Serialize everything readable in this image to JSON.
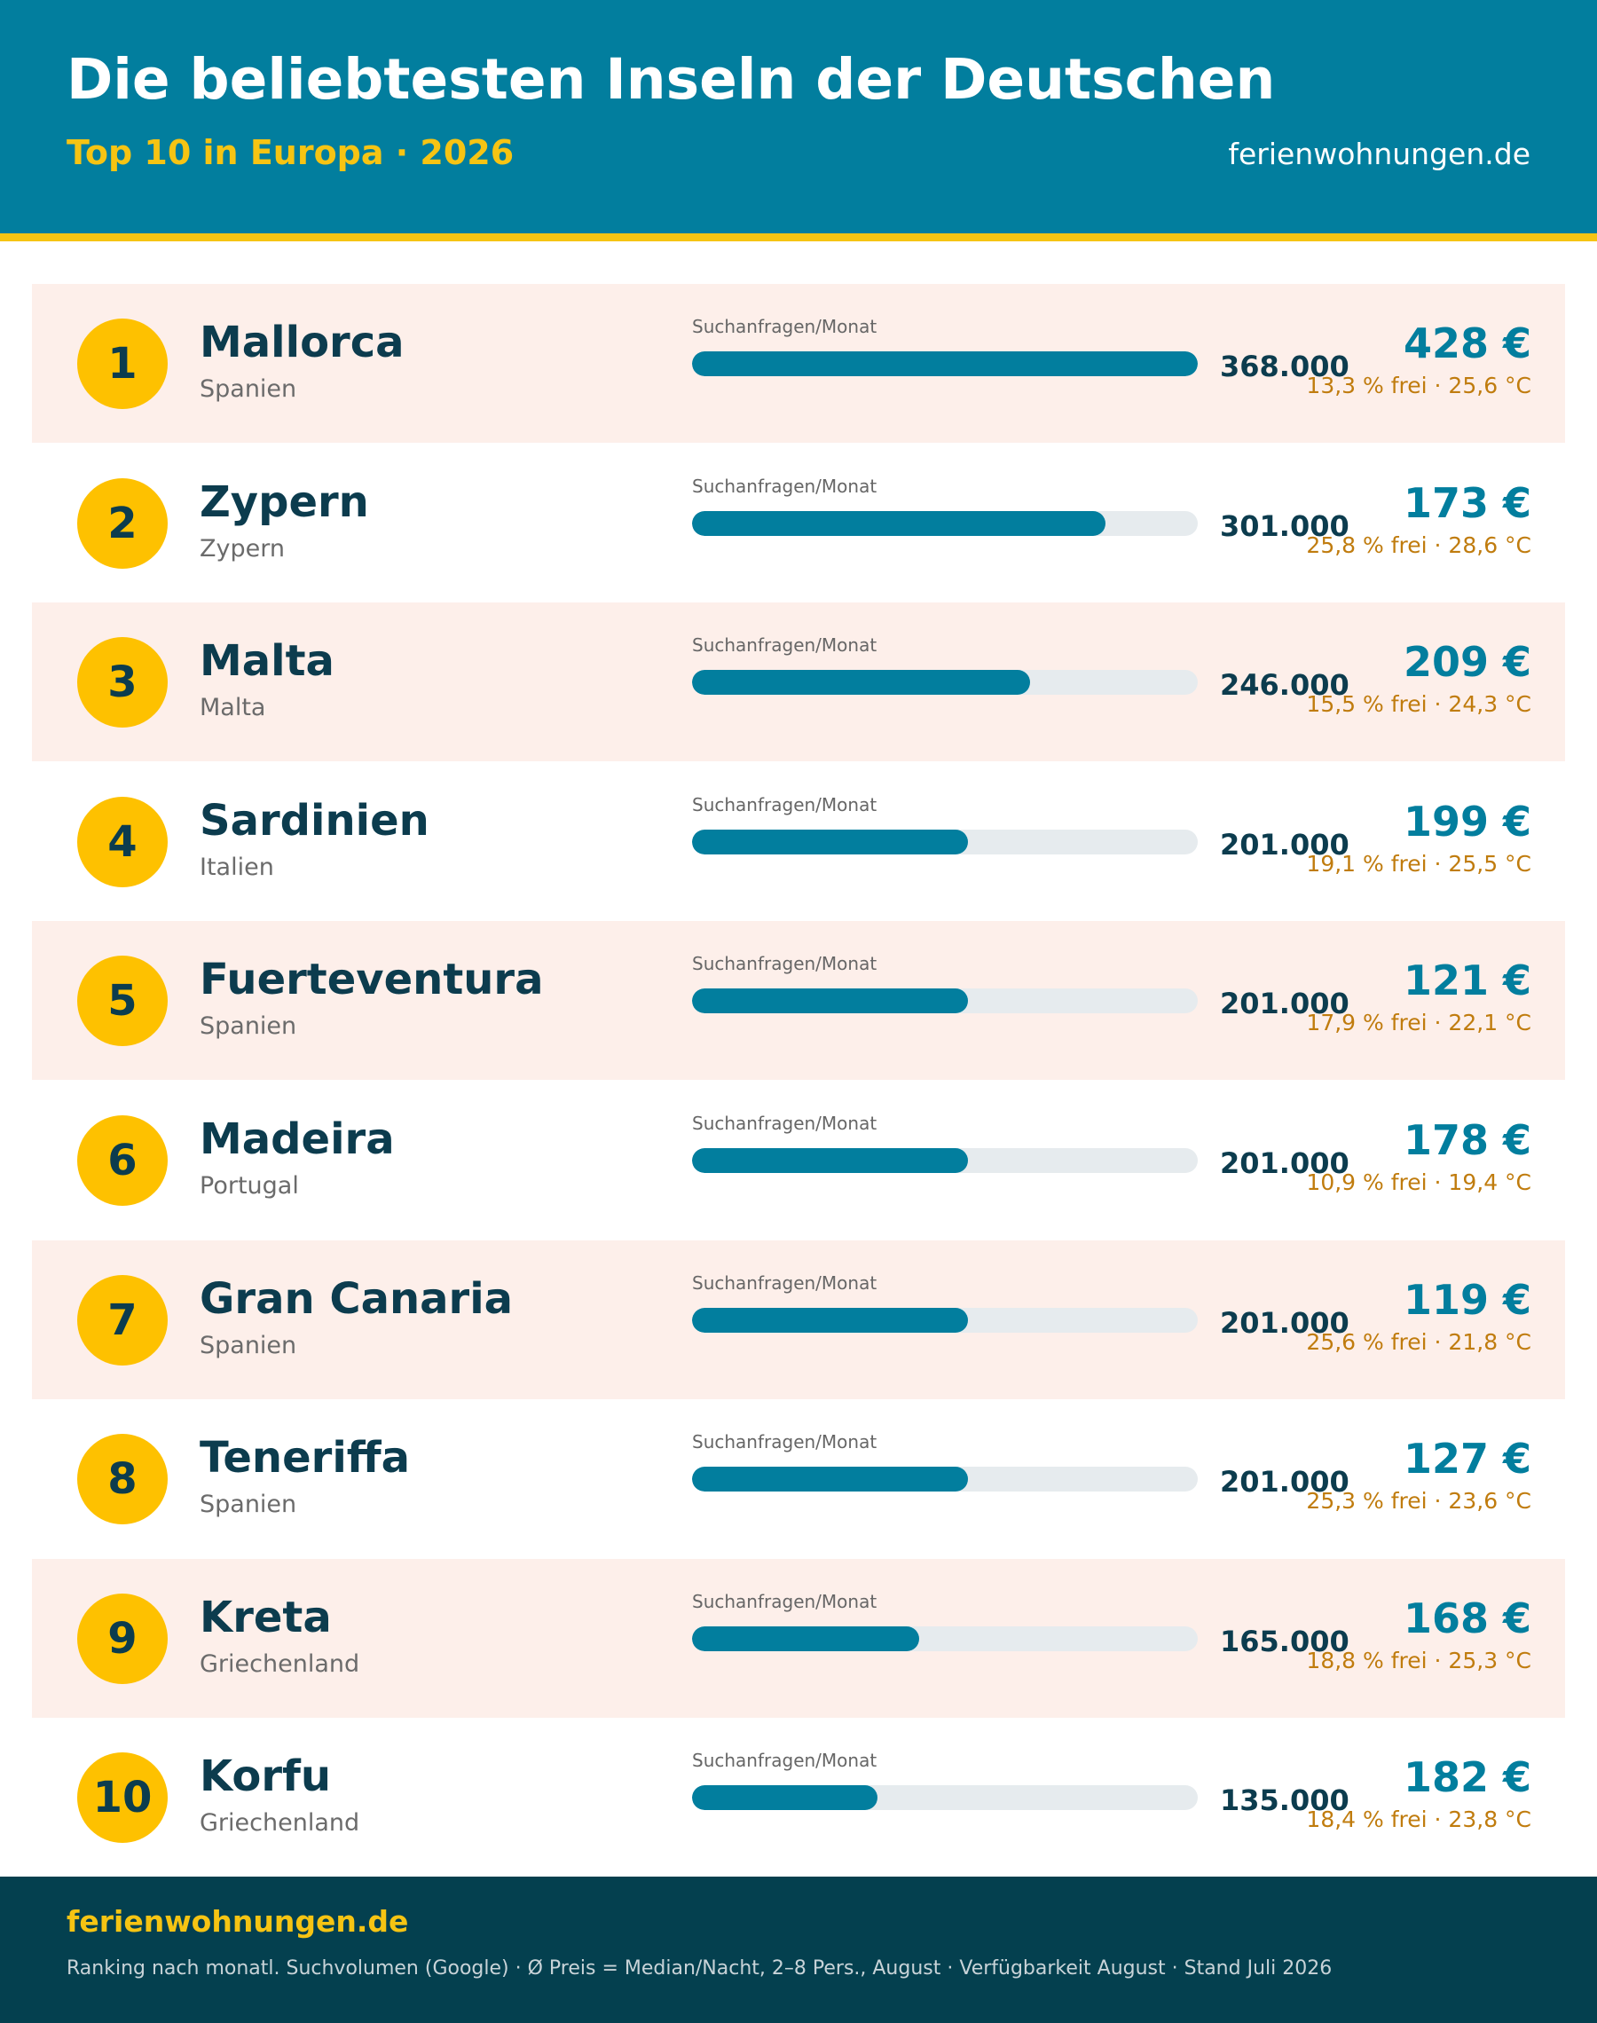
{
  "header": {
    "title": "Die beliebtesten Inseln der Deutschen",
    "subtitle": "Top 10 in Europa · 2026",
    "brand": "ferienwohnungen.de"
  },
  "footer": {
    "brand": "ferienwohnungen.de",
    "note": "Ranking nach monatl. Suchvolumen (Google) · Ø Preis = Median/Nacht, 2–8 Pers., August · Verfügbarkeit August · Stand Juli 2026"
  },
  "colors": {
    "header_bg": "#027e9e",
    "accent_yellow": "#f6c413",
    "bar": "#027e9e",
    "row_shade": "#fdefea",
    "footer_bg": "#04404f"
  },
  "chart_data": {
    "type": "bar",
    "orientation": "horizontal",
    "bar_label": "Suchanfragen/Monat",
    "xlim": [
      0,
      368000
    ],
    "categories": [
      "Mallorca",
      "Zypern",
      "Malta",
      "Sardinien",
      "Fuerteventura",
      "Madeira",
      "Gran Canaria",
      "Teneriffa",
      "Kreta",
      "Korfu"
    ],
    "values": [
      368000,
      301000,
      246000,
      201000,
      201000,
      201000,
      201000,
      201000,
      165000,
      135000
    ],
    "rows": [
      {
        "rank": "1",
        "name": "Mallorca",
        "country": "Spanien",
        "searches": 368000,
        "searches_label": "368.000",
        "price": "428 €",
        "meta": "13,3 % frei · 25,6 °C"
      },
      {
        "rank": "2",
        "name": "Zypern",
        "country": "Zypern",
        "searches": 301000,
        "searches_label": "301.000",
        "price": "173 €",
        "meta": "25,8 % frei · 28,6 °C"
      },
      {
        "rank": "3",
        "name": "Malta",
        "country": "Malta",
        "searches": 246000,
        "searches_label": "246.000",
        "price": "209 €",
        "meta": "15,5 % frei · 24,3 °C"
      },
      {
        "rank": "4",
        "name": "Sardinien",
        "country": "Italien",
        "searches": 201000,
        "searches_label": "201.000",
        "price": "199 €",
        "meta": "19,1 % frei · 25,5 °C"
      },
      {
        "rank": "5",
        "name": "Fuerteventura",
        "country": "Spanien",
        "searches": 201000,
        "searches_label": "201.000",
        "price": "121 €",
        "meta": "17,9 % frei · 22,1 °C"
      },
      {
        "rank": "6",
        "name": "Madeira",
        "country": "Portugal",
        "searches": 201000,
        "searches_label": "201.000",
        "price": "178 €",
        "meta": "10,9 % frei · 19,4 °C"
      },
      {
        "rank": "7",
        "name": "Gran Canaria",
        "country": "Spanien",
        "searches": 201000,
        "searches_label": "201.000",
        "price": "119 €",
        "meta": "25,6 % frei · 21,8 °C"
      },
      {
        "rank": "8",
        "name": "Teneriffa",
        "country": "Spanien",
        "searches": 201000,
        "searches_label": "201.000",
        "price": "127 €",
        "meta": "25,3 % frei · 23,6 °C"
      },
      {
        "rank": "9",
        "name": "Kreta",
        "country": "Griechenland",
        "searches": 165000,
        "searches_label": "165.000",
        "price": "168 €",
        "meta": "18,8 % frei · 25,3 °C"
      },
      {
        "rank": "10",
        "name": "Korfu",
        "country": "Griechenland",
        "searches": 135000,
        "searches_label": "135.000",
        "price": "182 €",
        "meta": "18,4 % frei · 23,8 °C"
      }
    ]
  }
}
